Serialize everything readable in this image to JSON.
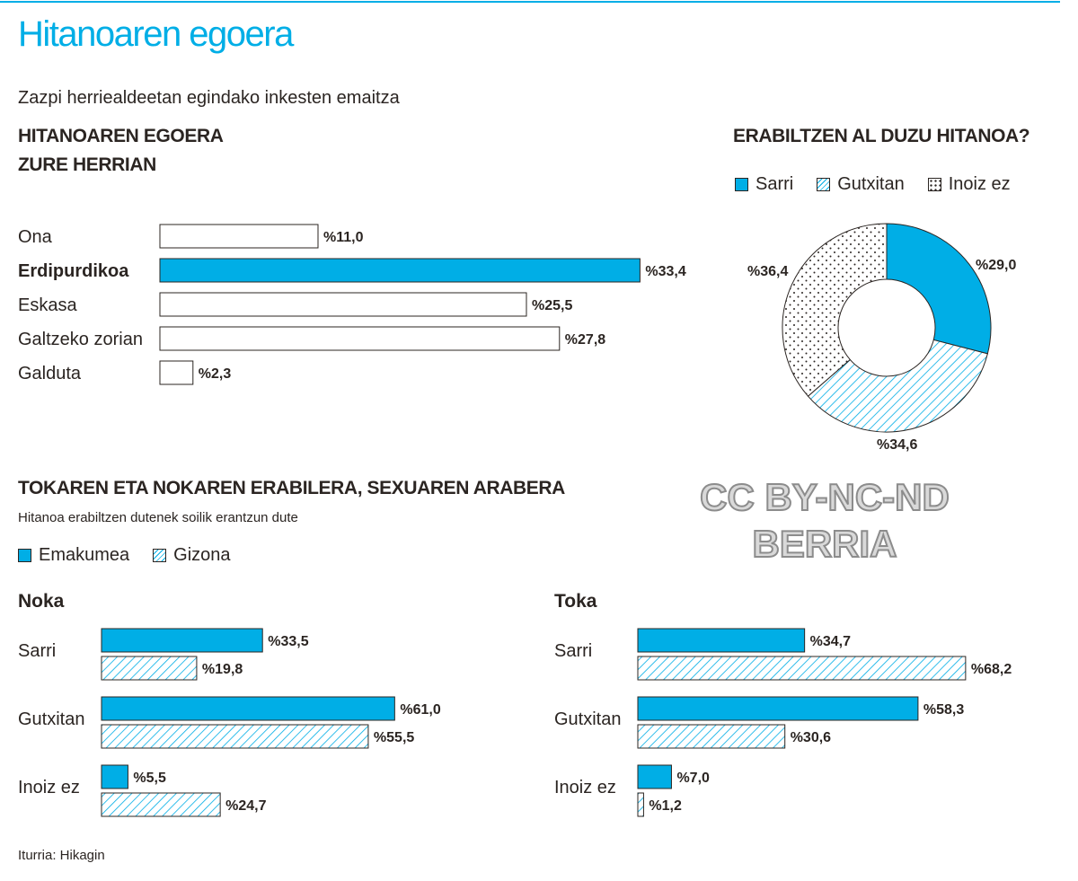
{
  "header": {
    "title": "Hitanoaren egoera",
    "subtitle": "Zazpi herriealdeetan egindako inkesten emaitza"
  },
  "status": {
    "title_line1": "HITANOAREN EGOERA",
    "title_line2": "ZURE HERRIAN"
  },
  "usage": {
    "title": "ERABILTZEN AL DUZU HITANOA?",
    "legend": [
      "Sarri",
      "Gutxitan",
      "Inoiz ez"
    ]
  },
  "gender": {
    "title": "TOKAREN ETA NOKAREN ERABILERA, SEXUAREN ARABERA",
    "note": "Hitanoa erabiltzen dutenek soilik erantzun dute",
    "legend": [
      "Emakumea",
      "Gizona"
    ],
    "left_panel": "Noka",
    "right_panel": "Toka"
  },
  "source": "Iturria: Hikagin",
  "watermark": {
    "line1": "CC BY-NC-ND",
    "line2": "BERRIA"
  },
  "colors": {
    "accent": "#00aee6",
    "text": "#2b2522",
    "outline": "#2b2522"
  },
  "chart_data": [
    {
      "type": "bar",
      "orientation": "horizontal",
      "categories": [
        "Ona",
        "Erdipurdikoa",
        "Eskasa",
        "Galtzeko zorian",
        "Galduta"
      ],
      "values": [
        11.0,
        33.4,
        25.5,
        27.8,
        2.3
      ],
      "labels": [
        "%11,0",
        "%33,4",
        "%25,5",
        "%27,8",
        "%2,3"
      ],
      "highlight": "Erdipurdikoa"
    },
    {
      "type": "pie",
      "donut": true,
      "categories": [
        "Sarri",
        "Gutxitan",
        "Inoiz ez"
      ],
      "values": [
        29.0,
        34.6,
        36.4
      ],
      "labels": [
        "%29,0",
        "%34,6",
        "%36,4"
      ],
      "fills": [
        "solid",
        "hatch",
        "dots"
      ]
    },
    {
      "type": "bar",
      "orientation": "horizontal",
      "panel": "Noka",
      "categories": [
        "Sarri",
        "Gutxitan",
        "Inoiz ez"
      ],
      "series": [
        {
          "name": "Emakumea",
          "values": [
            33.5,
            61.0,
            5.5
          ],
          "labels": [
            "%33,5",
            "%61,0",
            "%5,5"
          ]
        },
        {
          "name": "Gizona",
          "values": [
            19.8,
            55.5,
            24.7
          ],
          "labels": [
            "%19,8",
            "%55,5",
            "%24,7"
          ]
        }
      ]
    },
    {
      "type": "bar",
      "orientation": "horizontal",
      "panel": "Toka",
      "categories": [
        "Sarri",
        "Gutxitan",
        "Inoiz ez"
      ],
      "series": [
        {
          "name": "Emakumea",
          "values": [
            34.7,
            58.3,
            7.0
          ],
          "labels": [
            "%34,7",
            "%58,3",
            "%7,0"
          ]
        },
        {
          "name": "Gizona",
          "values": [
            68.2,
            30.6,
            1.2
          ],
          "labels": [
            "%68,2",
            "%30,6",
            "%1,2"
          ]
        }
      ]
    }
  ]
}
